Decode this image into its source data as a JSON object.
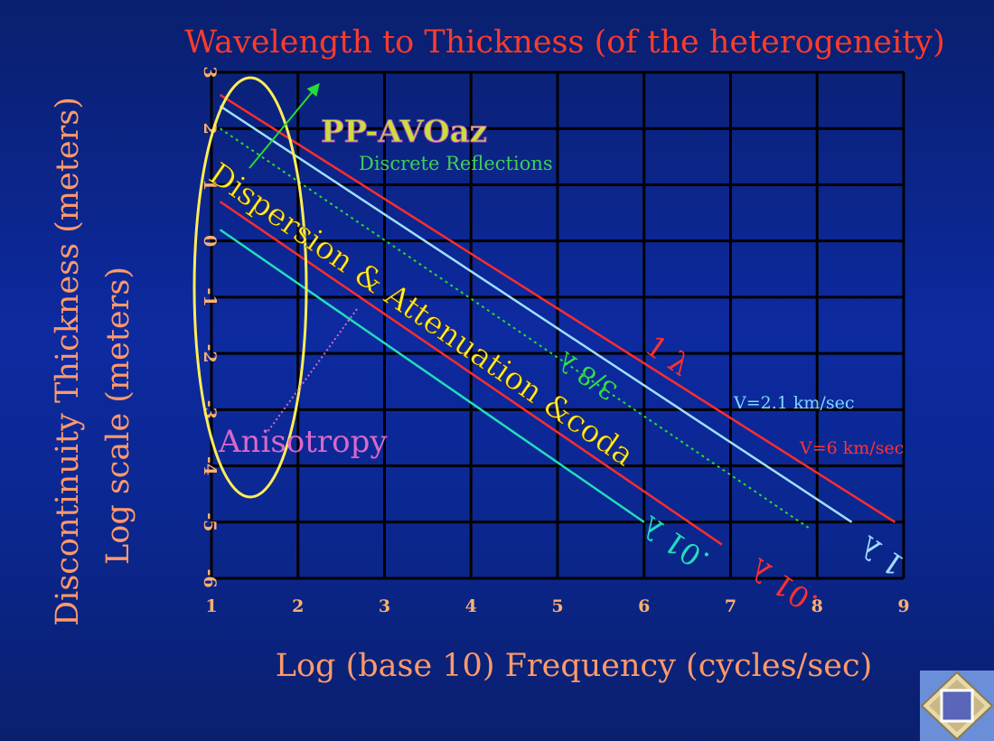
{
  "chart_data": {
    "type": "line",
    "title": "Wavelength to Thickness (of the heterogeneity)",
    "xlabel": "Log (base 10) Frequency (cycles/sec)",
    "ylabel_line1": "Discontinuity Thickness (meters)",
    "ylabel_line2": "Log scale (meters)",
    "xlim": [
      1,
      9
    ],
    "ylim": [
      -6,
      3
    ],
    "xticks": [
      "1",
      "2",
      "3",
      "4",
      "5",
      "6",
      "7",
      "8",
      "9"
    ],
    "yticks": [
      "3",
      "2",
      "1",
      "0",
      "-1",
      "-2",
      "-3",
      "-4",
      "-5",
      "-6"
    ],
    "grid": true,
    "series": [
      {
        "name": "1 λ (V=6 km/sec)",
        "color": "#ff2d2d",
        "style": "solid",
        "x": [
          1.1,
          8.9
        ],
        "y": [
          2.6,
          -5.0
        ]
      },
      {
        "name": "1 λ (V=2.1 km/sec)",
        "color": "#9fe0ff",
        "style": "solid",
        "x": [
          1.1,
          8.4
        ],
        "y": [
          2.4,
          -5.0
        ]
      },
      {
        "name": "3/8 λ",
        "color": "#22dd33",
        "style": "dotted",
        "x": [
          1.1,
          7.9
        ],
        "y": [
          2.0,
          -5.1
        ]
      },
      {
        "name": ".01 λ (V=6 km/sec)",
        "color": "#ff2d2d",
        "style": "solid",
        "x": [
          1.1,
          6.9
        ],
        "y": [
          0.7,
          -5.4
        ]
      },
      {
        "name": ".01 λ (V=2.1 km/sec)",
        "color": "#22ddbb",
        "style": "solid",
        "x": [
          1.1,
          6.0
        ],
        "y": [
          0.2,
          -5.0
        ]
      }
    ],
    "annotations": {
      "pp_avoaz": "PP-AVOaz",
      "discrete_reflections": "Discrete Reflections",
      "dispersion": "Dispersion & Attenuation &coda",
      "anisotropy": "Anisotropy",
      "three_eighths": "3/8 λ",
      "one_lambda_red": "1 λ",
      "one_lambda_blue": "1 λ",
      "v21": "V=2.1 km/sec",
      "v6": "V=6 km/sec",
      "hundredth_red": ".01 λ",
      "hundredth_blue": ".01 λ"
    },
    "colors": {
      "title": "#ff3b2a",
      "axis_label": "#ff9a6a",
      "tick": "#ffb070",
      "grid": "#000000",
      "ellipse": "#ffee55"
    }
  },
  "nav_icon": "slide-navigation-icon"
}
